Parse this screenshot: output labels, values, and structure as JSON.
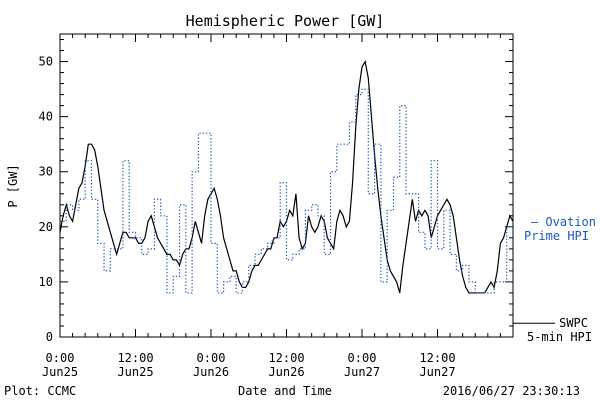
{
  "chart_data": {
    "type": "line",
    "title": "Hemispheric Power [GW]",
    "ylabel": "P [GW]",
    "xlabel": "Date and Time",
    "footer_left": "Plot: CCMC",
    "footer_right": "2016/06/27 23:30:13",
    "xlim": [
      0,
      72
    ],
    "ylim": [
      0,
      55
    ],
    "grid": false,
    "y_ticks": [
      0,
      10,
      20,
      30,
      40,
      50
    ],
    "x_ticks": [
      {
        "x": 0,
        "time": "0:00",
        "date": "Jun25"
      },
      {
        "x": 12,
        "time": "12:00",
        "date": "Jun25"
      },
      {
        "x": 24,
        "time": "0:00",
        "date": "Jun26"
      },
      {
        "x": 36,
        "time": "12:00",
        "date": "Jun26"
      },
      {
        "x": 48,
        "time": "0:00",
        "date": "Jun27"
      },
      {
        "x": 60,
        "time": "12:00",
        "date": "Jun27"
      }
    ],
    "series": [
      {
        "name": "SWPC 5-min HPI",
        "legend_lines": [
          "SWPC",
          "5-min HPI"
        ],
        "color": "#000000",
        "style": "solid",
        "points": [
          [
            0,
            19
          ],
          [
            0.5,
            22
          ],
          [
            1,
            24
          ],
          [
            1.5,
            22
          ],
          [
            2,
            21
          ],
          [
            2.5,
            24
          ],
          [
            3,
            27
          ],
          [
            3.5,
            28
          ],
          [
            4,
            31
          ],
          [
            4.5,
            35
          ],
          [
            5,
            35
          ],
          [
            5.5,
            34
          ],
          [
            6,
            31
          ],
          [
            6.5,
            27
          ],
          [
            7,
            23
          ],
          [
            7.5,
            21
          ],
          [
            8,
            19
          ],
          [
            8.5,
            17
          ],
          [
            9,
            15
          ],
          [
            9.5,
            17
          ],
          [
            10,
            19
          ],
          [
            10.5,
            19
          ],
          [
            11,
            18
          ],
          [
            11.5,
            18
          ],
          [
            12,
            18
          ],
          [
            12.5,
            17
          ],
          [
            13,
            17
          ],
          [
            13.5,
            18
          ],
          [
            14,
            21
          ],
          [
            14.5,
            22
          ],
          [
            15,
            20
          ],
          [
            15.5,
            18
          ],
          [
            16,
            17
          ],
          [
            16.5,
            16
          ],
          [
            17,
            15
          ],
          [
            17.5,
            15
          ],
          [
            18,
            14
          ],
          [
            18.5,
            14
          ],
          [
            19,
            13
          ],
          [
            19.5,
            15
          ],
          [
            20,
            16
          ],
          [
            20.5,
            16
          ],
          [
            21,
            18
          ],
          [
            21.5,
            21
          ],
          [
            22,
            19
          ],
          [
            22.5,
            17
          ],
          [
            23,
            22
          ],
          [
            23.5,
            25
          ],
          [
            24,
            26
          ],
          [
            24.5,
            27
          ],
          [
            25,
            25
          ],
          [
            25.5,
            22
          ],
          [
            26,
            18
          ],
          [
            26.5,
            16
          ],
          [
            27,
            14
          ],
          [
            27.5,
            12
          ],
          [
            28,
            12
          ],
          [
            28.5,
            10
          ],
          [
            29,
            9
          ],
          [
            29.5,
            9
          ],
          [
            30,
            10
          ],
          [
            30.5,
            12
          ],
          [
            31,
            13
          ],
          [
            31.5,
            13
          ],
          [
            32,
            14
          ],
          [
            32.5,
            15
          ],
          [
            33,
            16
          ],
          [
            33.5,
            16
          ],
          [
            34,
            18
          ],
          [
            34.5,
            18
          ],
          [
            35,
            21
          ],
          [
            35.5,
            20
          ],
          [
            36,
            21
          ],
          [
            36.5,
            23
          ],
          [
            37,
            22
          ],
          [
            37.5,
            26
          ],
          [
            38,
            18
          ],
          [
            38.5,
            16
          ],
          [
            39,
            17
          ],
          [
            39.5,
            22
          ],
          [
            40,
            20
          ],
          [
            40.5,
            19
          ],
          [
            41,
            20
          ],
          [
            41.5,
            22
          ],
          [
            42,
            21
          ],
          [
            42.5,
            18
          ],
          [
            43,
            17
          ],
          [
            43.5,
            16
          ],
          [
            44,
            21
          ],
          [
            44.5,
            23
          ],
          [
            45,
            22
          ],
          [
            45.5,
            20
          ],
          [
            46,
            21
          ],
          [
            46.5,
            28
          ],
          [
            47,
            38
          ],
          [
            47.5,
            45
          ],
          [
            48,
            49
          ],
          [
            48.5,
            50
          ],
          [
            49,
            47
          ],
          [
            49.5,
            40
          ],
          [
            50,
            33
          ],
          [
            50.5,
            27
          ],
          [
            51,
            22
          ],
          [
            51.5,
            18
          ],
          [
            52,
            14
          ],
          [
            52.5,
            12
          ],
          [
            53,
            11
          ],
          [
            53.5,
            10
          ],
          [
            54,
            8
          ],
          [
            54.5,
            13
          ],
          [
            55,
            17
          ],
          [
            55.5,
            21
          ],
          [
            56,
            25
          ],
          [
            56.5,
            21
          ],
          [
            57,
            23
          ],
          [
            57.5,
            22
          ],
          [
            58,
            23
          ],
          [
            58.5,
            22
          ],
          [
            59,
            18
          ],
          [
            59.5,
            20
          ],
          [
            60,
            22
          ],
          [
            60.5,
            23
          ],
          [
            61,
            24
          ],
          [
            61.5,
            25
          ],
          [
            62,
            24
          ],
          [
            62.5,
            22
          ],
          [
            63,
            18
          ],
          [
            63.5,
            14
          ],
          [
            64,
            11
          ],
          [
            64.5,
            9
          ],
          [
            65,
            8
          ],
          [
            65.5,
            8
          ],
          [
            66,
            8
          ],
          [
            66.5,
            8
          ],
          [
            67,
            8
          ],
          [
            67.5,
            8
          ],
          [
            68,
            9
          ],
          [
            68.5,
            10
          ],
          [
            69,
            9
          ],
          [
            69.5,
            12
          ],
          [
            70,
            17
          ],
          [
            70.5,
            18
          ],
          [
            71,
            20
          ],
          [
            71.5,
            22
          ],
          [
            72,
            21
          ]
        ]
      },
      {
        "name": "Ovation Prime HPI",
        "legend_lines": [
          "— Ovation",
          "Prime HPI"
        ],
        "color": "#1a57c0",
        "style": "dotted-step",
        "points": [
          [
            0,
            21
          ],
          [
            1,
            24
          ],
          [
            2,
            23
          ],
          [
            3,
            25
          ],
          [
            4,
            32
          ],
          [
            5,
            25
          ],
          [
            6,
            17
          ],
          [
            7,
            12
          ],
          [
            8,
            16
          ],
          [
            9,
            16
          ],
          [
            10,
            32
          ],
          [
            11,
            19
          ],
          [
            12,
            18
          ],
          [
            13,
            15
          ],
          [
            14,
            16
          ],
          [
            15,
            25
          ],
          [
            16,
            22
          ],
          [
            17,
            8
          ],
          [
            18,
            11
          ],
          [
            19,
            24
          ],
          [
            20,
            8
          ],
          [
            21,
            30
          ],
          [
            22,
            37
          ],
          [
            23,
            37
          ],
          [
            24,
            17
          ],
          [
            25,
            8
          ],
          [
            26,
            10
          ],
          [
            27,
            11
          ],
          [
            28,
            8
          ],
          [
            29,
            10
          ],
          [
            30,
            13
          ],
          [
            31,
            15
          ],
          [
            32,
            16
          ],
          [
            33,
            17
          ],
          [
            34,
            18
          ],
          [
            35,
            28
          ],
          [
            36,
            14
          ],
          [
            37,
            15
          ],
          [
            38,
            16
          ],
          [
            39,
            23
          ],
          [
            40,
            24
          ],
          [
            41,
            22
          ],
          [
            42,
            15
          ],
          [
            43,
            30
          ],
          [
            44,
            35
          ],
          [
            45,
            35
          ],
          [
            46,
            39
          ],
          [
            47,
            44
          ],
          [
            48,
            45
          ],
          [
            49,
            26
          ],
          [
            50,
            35
          ],
          [
            51,
            10
          ],
          [
            52,
            23
          ],
          [
            53,
            29
          ],
          [
            54,
            42
          ],
          [
            55,
            26
          ],
          [
            56,
            26
          ],
          [
            57,
            19
          ],
          [
            58,
            16
          ],
          [
            59,
            32
          ],
          [
            60,
            16
          ],
          [
            61,
            23
          ],
          [
            62,
            15
          ],
          [
            63,
            12
          ],
          [
            64,
            13
          ],
          [
            65,
            10
          ],
          [
            66,
            8
          ],
          [
            67,
            8
          ],
          [
            68,
            8
          ],
          [
            69,
            10
          ],
          [
            70,
            10
          ],
          [
            71,
            20
          ],
          [
            72,
            20
          ]
        ]
      }
    ]
  }
}
